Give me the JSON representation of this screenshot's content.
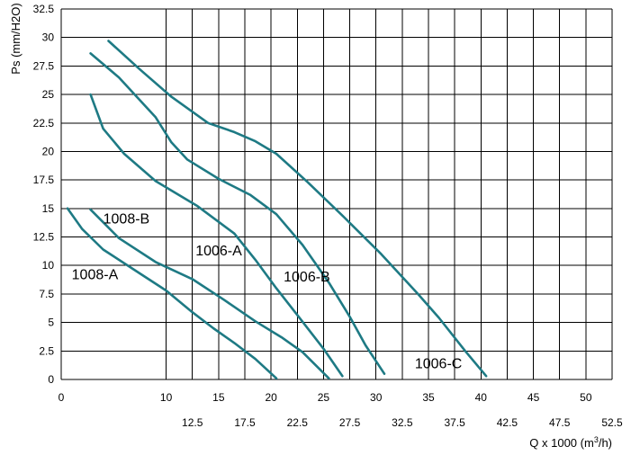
{
  "chart_data": {
    "type": "line",
    "xlabel": "Q x 1000 (m3/h)",
    "xlabel_main": "Q x 1000 (m",
    "xlabel_sup": "3",
    "xlabel_end": "/h)",
    "ylabel": "Ps (mm/H2O)",
    "xlim": [
      0,
      52.5
    ],
    "ylim": [
      0,
      32.5
    ],
    "x_ticks_upper": [
      "0",
      "10",
      "15",
      "20",
      "25",
      "30",
      "35",
      "40",
      "45",
      "50"
    ],
    "x_ticks_lower": [
      "12.5",
      "17.5",
      "22.5",
      "27.5",
      "32.5",
      "37.5",
      "42.5",
      "47.5",
      "52.5"
    ],
    "y_ticks": [
      "0",
      "2.5",
      "5",
      "7.5",
      "10",
      "12.5",
      "15",
      "17.5",
      "20",
      "22.5",
      "25",
      "27.5",
      "30",
      "32.5"
    ],
    "grid": true,
    "line_color": "#1e7a84",
    "series": [
      {
        "name": "1008-A",
        "label_at": [
          1,
          8.8
        ],
        "x": [
          0.6,
          2,
          4,
          7.5,
          10,
          12.5,
          14.5,
          16.5,
          18.5,
          20.5
        ],
        "y": [
          15,
          13.2,
          11.4,
          9.3,
          7.8,
          5.9,
          4.5,
          3.2,
          1.8,
          0.1
        ]
      },
      {
        "name": "1008-B",
        "label_at": [
          4,
          13.7
        ],
        "x": [
          2.8,
          5.5,
          9,
          12.5,
          15.5,
          18.5,
          21,
          23,
          25.5
        ],
        "y": [
          14.9,
          12.4,
          10.3,
          8.8,
          7,
          5.1,
          3.7,
          2.4,
          0.1
        ]
      },
      {
        "name": "1006-A",
        "label_at": [
          12.8,
          10.9
        ],
        "x": [
          2.8,
          4,
          6,
          9,
          13,
          16.5,
          18.5,
          20.5,
          22.8,
          25,
          26.8
        ],
        "y": [
          25,
          22,
          19.8,
          17.4,
          15.2,
          12.8,
          10.5,
          8,
          5.3,
          2.7,
          0.3
        ]
      },
      {
        "name": "1006-B",
        "label_at": [
          21.2,
          8.6
        ],
        "x": [
          2.8,
          5.5,
          9,
          10.5,
          12,
          15,
          18,
          20.5,
          23,
          25.5,
          27.5,
          29,
          30.8
        ],
        "y": [
          28.6,
          26.5,
          23,
          20.8,
          19.3,
          17.6,
          16.2,
          14.5,
          11.8,
          8.5,
          5.5,
          3,
          0.5
        ]
      },
      {
        "name": "1006-C",
        "label_at": [
          33.7,
          1.0
        ],
        "x": [
          4.5,
          7.5,
          10.5,
          14,
          16.5,
          18.5,
          20.5,
          23.5,
          27,
          30.5,
          34,
          36,
          38.5,
          40.5
        ],
        "y": [
          29.7,
          27.2,
          24.8,
          22.5,
          21.7,
          20.9,
          19.8,
          17.3,
          14.2,
          11,
          7.5,
          5.4,
          2.5,
          0.3
        ]
      }
    ]
  }
}
